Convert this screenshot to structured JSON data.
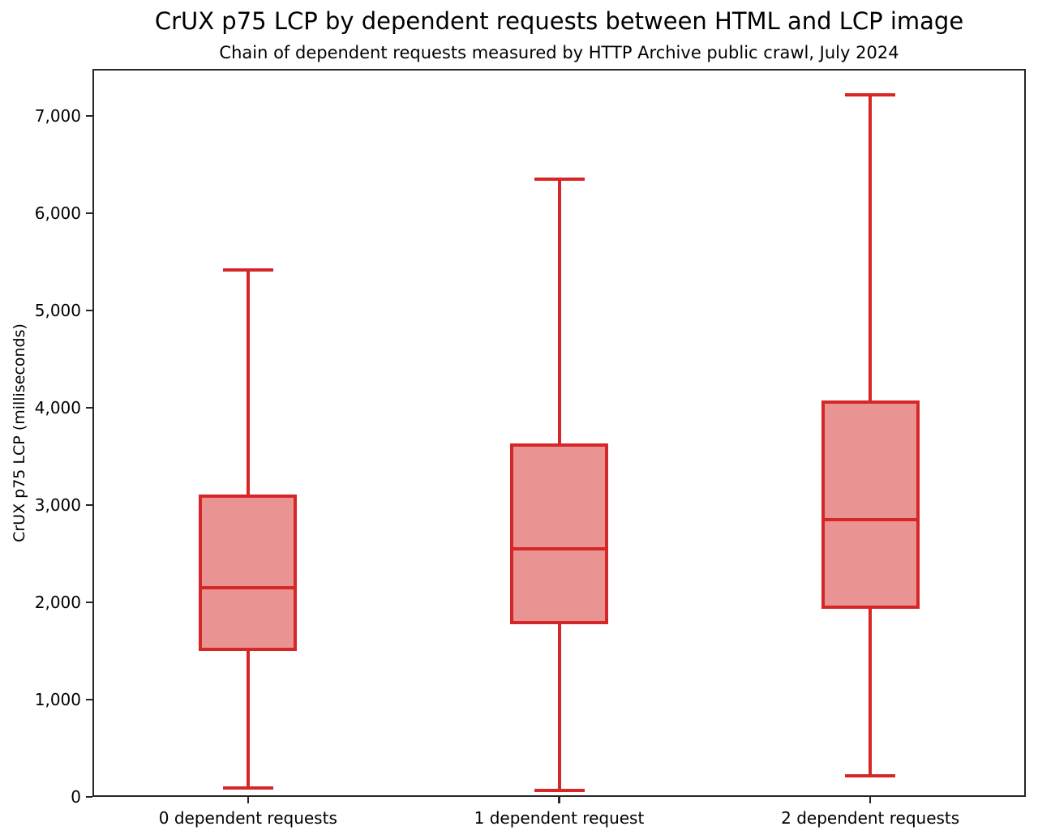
{
  "chart_data": {
    "type": "boxplot",
    "title": "CrUX p75 LCP by dependent requests between HTML and LCP image",
    "subtitle": "Chain of dependent requests measured by HTTP Archive public crawl, July 2024",
    "ylabel": "CrUX p75 LCP (milliseconds)",
    "xlabel": "",
    "categories": [
      "0 dependent requests",
      "1 dependent request",
      "2 dependent requests"
    ],
    "series": [
      {
        "name": "0 dependent requests",
        "whisker_low": 90,
        "q1": 1520,
        "median": 2150,
        "q3": 3090,
        "whisker_high": 5420
      },
      {
        "name": "1 dependent request",
        "whisker_low": 70,
        "q1": 1790,
        "median": 2550,
        "q3": 3620,
        "whisker_high": 6350
      },
      {
        "name": "2 dependent requests",
        "whisker_low": 220,
        "q1": 1950,
        "median": 2850,
        "q3": 4060,
        "whisker_high": 7220
      }
    ],
    "ylim": [
      0,
      7483
    ],
    "yticks": [
      0,
      1000,
      2000,
      3000,
      4000,
      5000,
      6000,
      7000
    ],
    "grid": false,
    "legend": false,
    "colors": {
      "box_line": "#d62728",
      "box_fill": "rgba(214,39,40,0.5)",
      "frame": "#262626",
      "text": "#000000"
    }
  }
}
